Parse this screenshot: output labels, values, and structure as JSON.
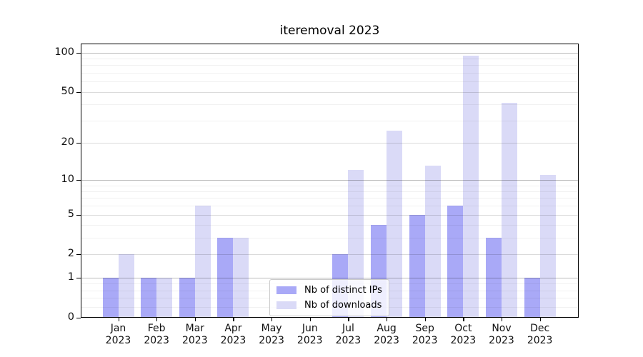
{
  "title": "iteremoval 2023",
  "chart_data": {
    "type": "bar",
    "title": "iteremoval 2023",
    "xlabel": "",
    "ylabel": "",
    "yscale": "log10(1+y)",
    "ylim": [
      0,
      117
    ],
    "grid": "horizontal",
    "y_ticks": [
      0,
      1,
      2,
      5,
      10,
      20,
      50,
      100
    ],
    "y_major_emphasis": [
      1,
      10,
      100
    ],
    "y_minor_ticks": [
      0.2,
      0.4,
      0.6,
      0.8,
      3,
      4,
      6,
      7,
      8,
      9,
      30,
      40,
      60,
      70,
      80,
      90
    ],
    "categories": [
      "Jan 2023",
      "Feb 2023",
      "Mar 2023",
      "Apr 2023",
      "May 2023",
      "Jun 2023",
      "Jul 2023",
      "Aug 2023",
      "Sep 2023",
      "Oct 2023",
      "Nov 2023",
      "Dec 2023"
    ],
    "series": [
      {
        "name": "Nb of distinct IPs",
        "color": "#a9a9f7",
        "values": [
          1,
          1,
          1,
          3,
          0,
          0,
          2,
          4,
          5,
          6,
          3,
          1
        ]
      },
      {
        "name": "Nb of downloads",
        "color": "#dadaf7",
        "values": [
          2,
          1,
          6,
          3,
          0,
          0,
          12,
          25,
          13,
          95,
          41,
          11
        ]
      }
    ],
    "legend_position": "lower center"
  }
}
